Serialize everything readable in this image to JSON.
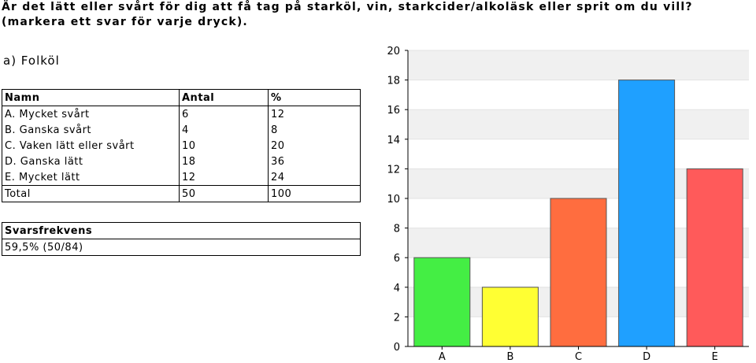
{
  "question": "Är det lätt eller svårt för dig att få tag på starköl, vin, starkcider/alkoläsk eller sprit om du vill? (markera ett svar för varje dryck).",
  "section_title": "a) Folköl",
  "table": {
    "headers": [
      "Namn",
      "Antal",
      "%"
    ],
    "rows": [
      {
        "name": "A. Mycket svårt",
        "count": "6",
        "percent": "12"
      },
      {
        "name": "B. Ganska svårt",
        "count": "4",
        "percent": "8"
      },
      {
        "name": "C. Vaken lätt eller svårt",
        "count": "10",
        "percent": "20"
      },
      {
        "name": "D. Ganska lätt",
        "count": "18",
        "percent": "36"
      },
      {
        "name": "E. Mycket lätt",
        "count": "12",
        "percent": "24"
      }
    ],
    "total": {
      "name": "Total",
      "count": "50",
      "percent": "100"
    }
  },
  "response_rate": {
    "label": "Svarsfrekvens",
    "value": "59,5% (50/84)"
  },
  "chart_data": {
    "type": "bar",
    "categories": [
      "A",
      "B",
      "C",
      "D",
      "E"
    ],
    "values": [
      6,
      4,
      10,
      18,
      12
    ],
    "colors": [
      "#44ee44",
      "#ffff33",
      "#ff6d3f",
      "#1fa0ff",
      "#ff5a5a"
    ],
    "ylim": [
      0,
      20
    ],
    "yticks": [
      0,
      2,
      4,
      6,
      8,
      10,
      12,
      14,
      16,
      18,
      20
    ],
    "title": "",
    "xlabel": "",
    "ylabel": "",
    "grid": "horizontal alternating bands"
  }
}
